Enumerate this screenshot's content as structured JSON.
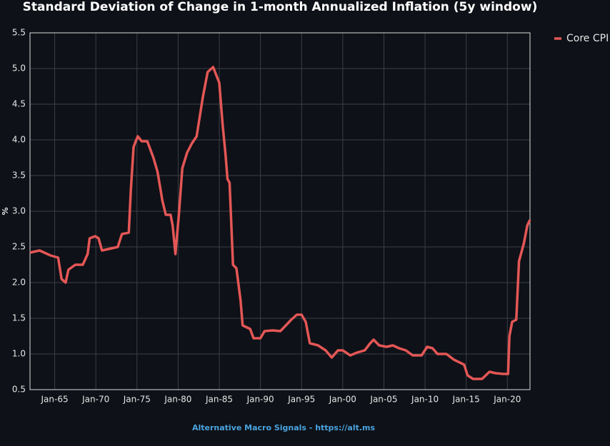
{
  "chart_data": {
    "type": "line",
    "title": "Standard Deviation of Change in 1-month Annualized Inflation (5y window)",
    "ylabel": "%",
    "source": "Alternative Macro Signals - https://alt.ms",
    "legend": "right",
    "grid": true,
    "x": [
      "1962-01",
      "1963-03",
      "1964-07",
      "1965-06",
      "1965-11",
      "1966-05",
      "1966-09",
      "1967-07",
      "1968-06",
      "1969-01",
      "1969-04",
      "1969-12",
      "1970-05",
      "1970-10",
      "1971-12",
      "1972-09",
      "1973-03",
      "1974-01",
      "1974-04",
      "1974-08",
      "1975-02",
      "1975-08",
      "1976-04",
      "1977-01",
      "1977-07",
      "1978-02",
      "1978-07",
      "1979-02",
      "1979-05",
      "1979-09",
      "1980-02",
      "1980-07",
      "1981-02",
      "1981-09",
      "1982-04",
      "1983-01",
      "1983-08",
      "1984-04",
      "1985-01",
      "1985-06",
      "1985-10",
      "1986-01",
      "1986-04",
      "1986-09",
      "1987-02",
      "1987-08",
      "1987-11",
      "1988-10",
      "1989-03",
      "1990-01",
      "1990-07",
      "1991-07",
      "1992-06",
      "1993-02",
      "1993-10",
      "1994-06",
      "1995-01",
      "1995-07",
      "1996-01",
      "1997-01",
      "1997-12",
      "1998-09",
      "1999-06",
      "2000-01",
      "2000-12",
      "2001-10",
      "2002-09",
      "2003-05",
      "2003-10",
      "2004-06",
      "2005-05",
      "2006-02",
      "2006-11",
      "2007-09",
      "2008-07",
      "2009-08",
      "2010-04",
      "2010-12",
      "2011-07",
      "2012-08",
      "2013-07",
      "2014-10",
      "2015-03",
      "2015-11",
      "2016-12",
      "2017-11",
      "2018-08",
      "2019-07",
      "2020-02",
      "2020-04",
      "2020-08",
      "2021-02",
      "2021-06",
      "2022-01",
      "2022-06",
      "2022-10"
    ],
    "series": [
      {
        "name": "Core CPI",
        "color": "#e45756",
        "values": [
          2.42,
          2.45,
          2.38,
          2.35,
          2.05,
          2.0,
          2.18,
          2.25,
          2.25,
          2.4,
          2.62,
          2.65,
          2.62,
          2.45,
          2.48,
          2.5,
          2.68,
          2.7,
          3.3,
          3.9,
          4.05,
          3.98,
          3.98,
          3.75,
          3.55,
          3.15,
          2.95,
          2.95,
          2.8,
          2.4,
          2.95,
          3.6,
          3.82,
          3.95,
          4.05,
          4.6,
          4.95,
          5.02,
          4.8,
          4.2,
          3.8,
          3.45,
          3.4,
          2.25,
          2.2,
          1.75,
          1.4,
          1.35,
          1.22,
          1.22,
          1.32,
          1.33,
          1.32,
          1.4,
          1.48,
          1.55,
          1.55,
          1.45,
          1.15,
          1.12,
          1.05,
          0.95,
          1.05,
          1.05,
          0.98,
          1.02,
          1.05,
          1.15,
          1.2,
          1.12,
          1.1,
          1.12,
          1.08,
          1.05,
          0.98,
          0.98,
          1.1,
          1.08,
          1.0,
          1.0,
          0.92,
          0.85,
          0.7,
          0.65,
          0.65,
          0.75,
          0.73,
          0.72,
          0.72,
          1.25,
          1.45,
          1.48,
          2.3,
          2.55,
          2.8,
          2.88
        ]
      }
    ],
    "xlim": [
      "1962-01",
      "2022-10"
    ],
    "xticks": [
      {
        "value": "1965-01",
        "label": "Jan-65"
      },
      {
        "value": "1970-01",
        "label": "Jan-70"
      },
      {
        "value": "1975-01",
        "label": "Jan-75"
      },
      {
        "value": "1980-01",
        "label": "Jan-80"
      },
      {
        "value": "1985-01",
        "label": "Jan-85"
      },
      {
        "value": "1990-01",
        "label": "Jan-90"
      },
      {
        "value": "1995-01",
        "label": "Jan-95"
      },
      {
        "value": "2000-01",
        "label": "Jan-00"
      },
      {
        "value": "2005-01",
        "label": "Jan-05"
      },
      {
        "value": "2010-01",
        "label": "Jan-10"
      },
      {
        "value": "2015-01",
        "label": "Jan-15"
      },
      {
        "value": "2020-01",
        "label": "Jan-20"
      }
    ],
    "ylim": [
      0.5,
      5.5
    ],
    "yticks": [
      0.5,
      {
        "value": 1,
        "label": "1.0"
      },
      1.5,
      {
        "value": 2,
        "label": "2.0"
      },
      2.5,
      {
        "value": 3,
        "label": "3.0"
      },
      3.5,
      {
        "value": 4,
        "label": "4.0"
      },
      4.5,
      {
        "value": 5,
        "label": "5.0"
      },
      5.5
    ]
  }
}
